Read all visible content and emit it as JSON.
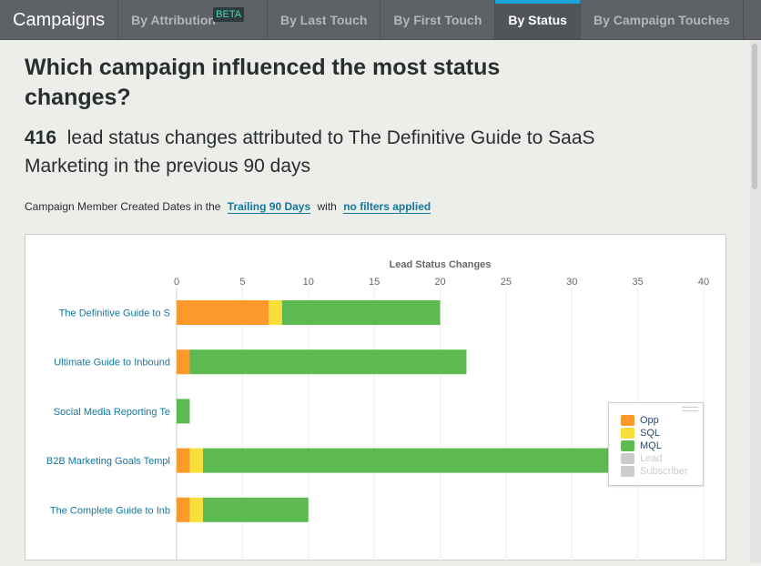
{
  "nav": {
    "brand": "Campaigns",
    "tabs": [
      {
        "label": "By Attribution",
        "badge": "BETA"
      },
      {
        "label": "By Last Touch"
      },
      {
        "label": "By First Touch"
      },
      {
        "label": "By Status",
        "active": true
      },
      {
        "label": "By Campaign Touches"
      }
    ]
  },
  "heading": "Which campaign influenced the most status changes?",
  "summary": {
    "count": "416",
    "text": "lead status changes attributed to The Definitive Guide to SaaS Marketing in the previous 90 days"
  },
  "filters": {
    "prefix": "Campaign Member Created Dates in the",
    "range": "Trailing 90 Days",
    "mid": "with",
    "filter": "no filters applied"
  },
  "chart_data": {
    "type": "bar",
    "orientation": "horizontal",
    "stacked": true,
    "title": "Lead Status Changes",
    "categories": [
      "The Definitive Guide to S",
      "Ultimate Guide to Inbound",
      "Social Media Reporting Te",
      "B2B Marketing Goals Templ",
      "The Complete Guide to Inb"
    ],
    "xlim": [
      0,
      40
    ],
    "xticks": [
      0,
      5,
      10,
      15,
      20,
      25,
      30,
      35,
      40
    ],
    "series": [
      {
        "name": "Opp",
        "color": "#fb9a2a",
        "values": [
          7,
          1,
          0,
          1,
          1
        ]
      },
      {
        "name": "SQL",
        "color": "#f7e03a",
        "values": [
          1,
          0,
          0,
          1,
          1
        ]
      },
      {
        "name": "MQL",
        "color": "#5dba50",
        "values": [
          12,
          21,
          1,
          35,
          8
        ]
      },
      {
        "name": "Lead",
        "color": "#cccccc",
        "values": [
          0,
          0,
          0,
          0,
          0
        ],
        "hidden": true
      },
      {
        "name": "Subscriber",
        "color": "#cccccc",
        "values": [
          0,
          0,
          0,
          0,
          0
        ],
        "hidden": true
      }
    ],
    "legend": "right"
  }
}
